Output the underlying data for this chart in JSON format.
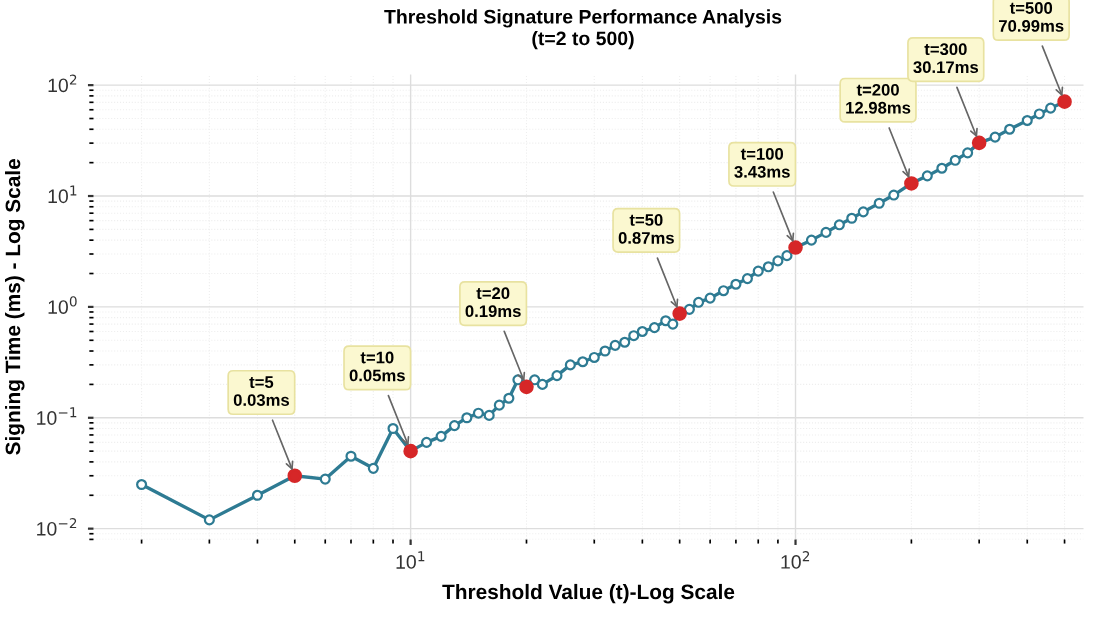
{
  "chart_data": {
    "type": "line",
    "title": "Threshold Signature Performance Analysis",
    "subtitle": "(t=2 to 500)",
    "xlabel": "Threshold Value (t)-Log Scale",
    "ylabel": "Signing Time (ms) - Log Scale",
    "log": "xy",
    "grid": true,
    "marker": "circle",
    "line_style": "solid",
    "xlim": [
      1.5,
      560
    ],
    "ylim": [
      0.008,
      125
    ],
    "xticks": [
      {
        "value": 10,
        "label": "10$^{1}$"
      },
      {
        "value": 100,
        "label": "10$^{2}$"
      }
    ],
    "yticks": [
      {
        "value": 0.01,
        "label": "10$^{−2}$"
      },
      {
        "value": 0.1,
        "label": "10$^{−1}$"
      },
      {
        "value": 1,
        "label": "10$^{0}$"
      },
      {
        "value": 10,
        "label": "10$^{1}$"
      },
      {
        "value": 100,
        "label": "10$^{2}$"
      }
    ],
    "series": [
      {
        "color": "#2e7b93",
        "x": [
          2,
          3,
          4,
          5,
          6,
          7,
          8,
          9,
          10,
          11,
          12,
          13,
          14,
          15,
          16,
          17,
          18,
          19,
          20,
          21,
          22,
          24,
          26,
          28,
          30,
          32,
          34,
          36,
          38,
          40,
          43,
          46,
          48,
          50,
          53,
          56,
          60,
          65,
          70,
          75,
          80,
          85,
          90,
          95,
          100,
          110,
          120,
          130,
          140,
          150,
          165,
          180,
          200,
          220,
          240,
          260,
          280,
          300,
          330,
          360,
          400,
          430,
          460,
          500
        ],
        "values": [
          0.025,
          0.012,
          0.02,
          0.03,
          0.028,
          0.045,
          0.035,
          0.08,
          0.05,
          0.06,
          0.068,
          0.085,
          0.1,
          0.11,
          0.105,
          0.13,
          0.15,
          0.22,
          0.19,
          0.22,
          0.2,
          0.24,
          0.3,
          0.32,
          0.35,
          0.4,
          0.45,
          0.48,
          0.55,
          0.6,
          0.65,
          0.75,
          0.7,
          0.87,
          0.95,
          1.1,
          1.2,
          1.4,
          1.6,
          1.8,
          2.1,
          2.3,
          2.6,
          2.9,
          3.43,
          4.0,
          4.7,
          5.5,
          6.3,
          7.2,
          8.6,
          10.2,
          12.98,
          15.2,
          17.8,
          21.0,
          24.5,
          30.17,
          34.0,
          40.0,
          48.0,
          55.0,
          62.0,
          70.99
        ]
      },
      {
        "type": "scatter",
        "color": "#d62728",
        "x": [
          5,
          10,
          20,
          50,
          100,
          200,
          300,
          500
        ],
        "values": [
          0.03,
          0.05,
          0.19,
          0.87,
          3.43,
          12.98,
          30.17,
          70.99
        ]
      }
    ],
    "annotations": [
      {
        "text": "t=5\n0.03ms",
        "x": 5,
        "y": 0.03
      },
      {
        "text": "t=10\n0.05ms",
        "x": 10,
        "y": 0.05
      },
      {
        "text": "t=20\n0.19ms",
        "x": 20,
        "y": 0.19
      },
      {
        "text": "t=50\n0.87ms",
        "x": 50,
        "y": 0.87
      },
      {
        "text": "t=100\n3.43ms",
        "x": 100,
        "y": 3.43
      },
      {
        "text": "t=200\n12.98ms",
        "x": 200,
        "y": 12.98
      },
      {
        "text": "t=300\n30.17ms",
        "x": 300,
        "y": 30.17
      },
      {
        "text": "t=500\n70.99ms",
        "x": 500,
        "y": 70.99
      }
    ]
  }
}
